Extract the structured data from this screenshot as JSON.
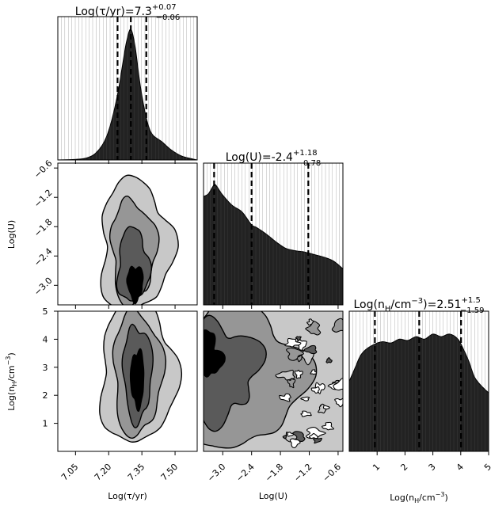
{
  "chart_data": {
    "type": "corner",
    "parameters": [
      {
        "key": "tau",
        "axis_label": "Log(τ/yr)",
        "title": "Log(τ/yr)=7.3",
        "title_sup": "+0.07",
        "title_sub": "−0.06",
        "range": [
          6.97,
          7.6
        ],
        "ticks": [
          7.05,
          7.2,
          7.35,
          7.5
        ],
        "tick_labels": [
          "7.05",
          "7.20",
          "7.35",
          "7.50"
        ],
        "quantiles": [
          7.24,
          7.3,
          7.37
        ],
        "hist_x": [
          6.97,
          7.05,
          7.1,
          7.14,
          7.18,
          7.21,
          7.24,
          7.26,
          7.28,
          7.3,
          7.32,
          7.34,
          7.36,
          7.38,
          7.4,
          7.44,
          7.48,
          7.53,
          7.6
        ],
        "hist_y": [
          0,
          0.004,
          0.015,
          0.05,
          0.14,
          0.28,
          0.5,
          0.7,
          0.9,
          1.0,
          0.86,
          0.6,
          0.4,
          0.26,
          0.19,
          0.14,
          0.08,
          0.03,
          0
        ]
      },
      {
        "key": "logU",
        "axis_label": "Log(U)",
        "title": "Log(U)=-2.4",
        "title_sup": "+1.18",
        "title_sub": "−0.78",
        "range": [
          -3.4,
          -0.5
        ],
        "ticks": [
          -3.0,
          -2.4,
          -1.8,
          -1.2,
          -0.6
        ],
        "tick_labels": [
          "−3.0",
          "−2.4",
          "−1.8",
          "−1.2",
          "−0.6"
        ],
        "quantiles": [
          -3.18,
          -2.4,
          -1.22
        ],
        "hist_x": [
          -3.4,
          -3.3,
          -3.2,
          -3.15,
          -3.0,
          -2.8,
          -2.6,
          -2.4,
          -2.3,
          -2.1,
          -1.9,
          -1.7,
          -1.5,
          -1.3,
          -1.1,
          -0.9,
          -0.7,
          -0.5
        ],
        "hist_y": [
          0.84,
          0.86,
          0.92,
          0.93,
          0.85,
          0.77,
          0.72,
          0.62,
          0.6,
          0.55,
          0.49,
          0.44,
          0.42,
          0.41,
          0.39,
          0.37,
          0.34,
          0.28
        ]
      },
      {
        "key": "logn",
        "axis_label": "Log(n",
        "axis_label_sub": "H",
        "axis_label_mid": "/cm",
        "axis_label_sup": "−3",
        "axis_label_end": ")",
        "title": "Log(n",
        "title_sub_h": "H",
        "title_mid": "/cm",
        "title_sup_unit": "−3",
        "title_end": ")=2.51",
        "title_sup": "+1.5",
        "title_sub": "−1.59",
        "range": [
          0,
          5
        ],
        "ticks": [
          1,
          2,
          3,
          4,
          5
        ],
        "tick_labels": [
          "1",
          "2",
          "3",
          "4",
          "5"
        ],
        "quantiles": [
          0.92,
          2.51,
          4.01
        ],
        "hist_x": [
          0,
          0.2,
          0.4,
          0.6,
          0.9,
          1.2,
          1.5,
          1.8,
          2.1,
          2.4,
          2.7,
          3.0,
          3.3,
          3.6,
          3.9,
          4.1,
          4.3,
          4.5,
          4.8,
          5.0
        ],
        "hist_y": [
          0.55,
          0.65,
          0.75,
          0.8,
          0.84,
          0.86,
          0.85,
          0.88,
          0.87,
          0.9,
          0.88,
          0.92,
          0.9,
          0.92,
          0.88,
          0.8,
          0.7,
          0.58,
          0.5,
          0.46
        ]
      }
    ],
    "contour_colors": [
      "#c8c8c8",
      "#969696",
      "#5a5a5a",
      "#000000"
    ],
    "hist_fill": "#222222"
  }
}
